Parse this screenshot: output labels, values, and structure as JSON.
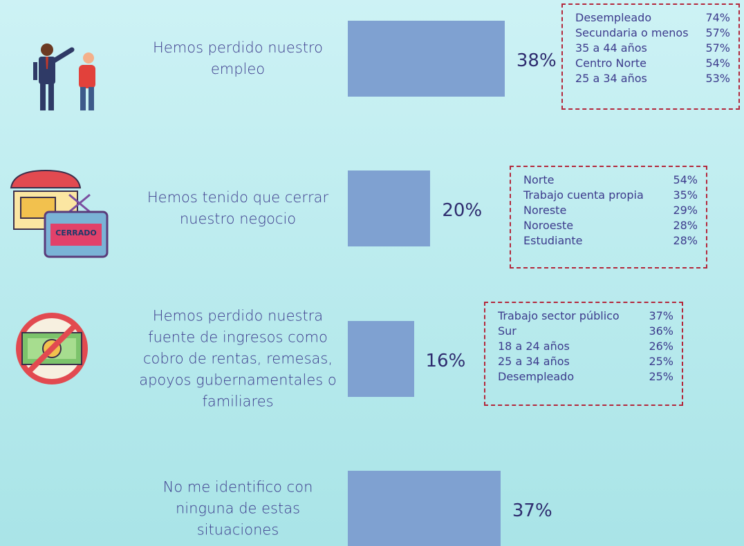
{
  "chart_data": {
    "type": "bar",
    "orientation": "horizontal",
    "color": "#7fa1d1",
    "categories": [
      "Hemos perdido nuestro\nempleo",
      "Hemos tenido que cerrar\nnuestro negocio",
      "Hemos perdido nuestra\nfuente de ingresos como\ncobro de rentas, remesas,\napoyos gubernamentales o\nfamiliares",
      "No me identifico con\nninguna de estas\nsituaciones"
    ],
    "values": [
      38,
      20,
      16,
      37
    ],
    "value_labels": [
      "38%",
      "20%",
      "16%",
      "37%"
    ],
    "breakdowns": [
      [
        {
          "name": "Desempleado",
          "value": 74,
          "value_label": "74%"
        },
        {
          "name": "Secundaria o menos",
          "value": 57,
          "value_label": "57%"
        },
        {
          "name": "35 a 44 años",
          "value": 57,
          "value_label": "57%"
        },
        {
          "name": "Centro Norte",
          "value": 54,
          "value_label": "54%"
        },
        {
          "name": "25 a 34 años",
          "value": 53,
          "value_label": "53%"
        }
      ],
      [
        {
          "name": "Norte",
          "value": 54,
          "value_label": "54%"
        },
        {
          "name": "Trabajo cuenta propia",
          "value": 35,
          "value_label": "35%"
        },
        {
          "name": "Noreste",
          "value": 29,
          "value_label": "29%"
        },
        {
          "name": "Noroeste",
          "value": 28,
          "value_label": "28%"
        },
        {
          "name": "Estudiante",
          "value": 28,
          "value_label": "28%"
        }
      ],
      [
        {
          "name": "Trabajo sector público",
          "value": 37,
          "value_label": "37%"
        },
        {
          "name": "Sur",
          "value": 36,
          "value_label": "36%"
        },
        {
          "name": "18 a 24 años",
          "value": 26,
          "value_label": "26%"
        },
        {
          "name": "25 a 34 años",
          "value": 25,
          "value_label": "25%"
        },
        {
          "name": "Desempleado",
          "value": 25,
          "value_label": "25%"
        }
      ]
    ]
  },
  "icon_labels": {
    "store_sign": "CERRADO"
  }
}
